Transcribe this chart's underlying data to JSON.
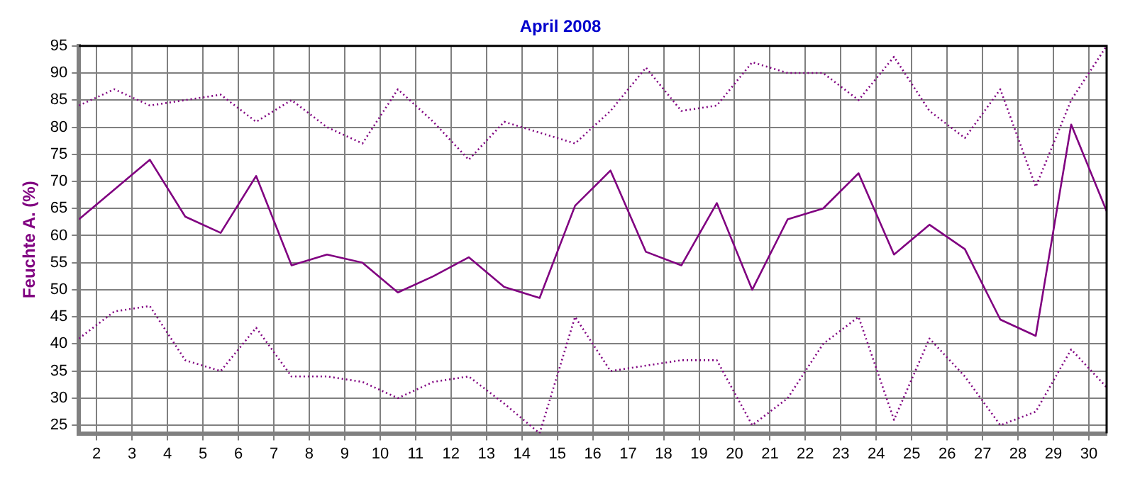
{
  "chart_data": {
    "type": "line",
    "title": "April 2008",
    "ylabel": "Feuchte A. (%)",
    "x": [
      1.5,
      2.5,
      3.5,
      4.5,
      5.5,
      6.5,
      7.5,
      8.5,
      9.5,
      10.5,
      11.5,
      12.5,
      13.5,
      14.5,
      15.5,
      16.5,
      17.5,
      18.5,
      19.5,
      20.5,
      21.5,
      22.5,
      23.5,
      24.5,
      25.5,
      26.5,
      27.5,
      28.5,
      29.5,
      30.5
    ],
    "xlim": [
      1.5,
      30.5
    ],
    "xticks": [
      2,
      3,
      4,
      5,
      6,
      7,
      8,
      9,
      10,
      11,
      12,
      13,
      14,
      15,
      16,
      17,
      18,
      19,
      20,
      21,
      22,
      23,
      24,
      25,
      26,
      27,
      28,
      29,
      30
    ],
    "ylim": [
      23.5,
      95
    ],
    "yticks": [
      25,
      30,
      35,
      40,
      45,
      50,
      55,
      60,
      65,
      70,
      75,
      80,
      85,
      90,
      95
    ],
    "grid": true,
    "legend": false,
    "marker": "none",
    "series": [
      {
        "color": "#800080",
        "line_style": "dotted",
        "values": [
          84,
          87,
          84,
          85,
          86,
          81,
          85,
          80,
          77,
          87,
          81,
          74,
          81,
          79,
          77,
          83,
          91,
          83,
          84,
          92,
          90,
          90,
          85,
          93,
          83,
          78,
          87,
          69,
          85,
          95
        ]
      },
      {
        "color": "#800080",
        "line_style": "solid",
        "values": [
          63,
          68.5,
          74,
          63.5,
          60.5,
          71,
          54.5,
          56.5,
          55,
          49.5,
          52.5,
          56,
          50.5,
          48.5,
          65.5,
          72,
          57,
          54.5,
          66,
          50,
          63,
          65,
          71.5,
          56.5,
          62,
          57.5,
          44.5,
          41.5,
          80.5,
          64.5
        ]
      },
      {
        "color": "#800080",
        "line_style": "dotted",
        "values": [
          41,
          46,
          47,
          37,
          35,
          43,
          34,
          34,
          33,
          30,
          33,
          34,
          29,
          23.5,
          45,
          35,
          36,
          37,
          37,
          25,
          30,
          40,
          45,
          26,
          41,
          34,
          25,
          27.5,
          39,
          32
        ]
      }
    ]
  }
}
